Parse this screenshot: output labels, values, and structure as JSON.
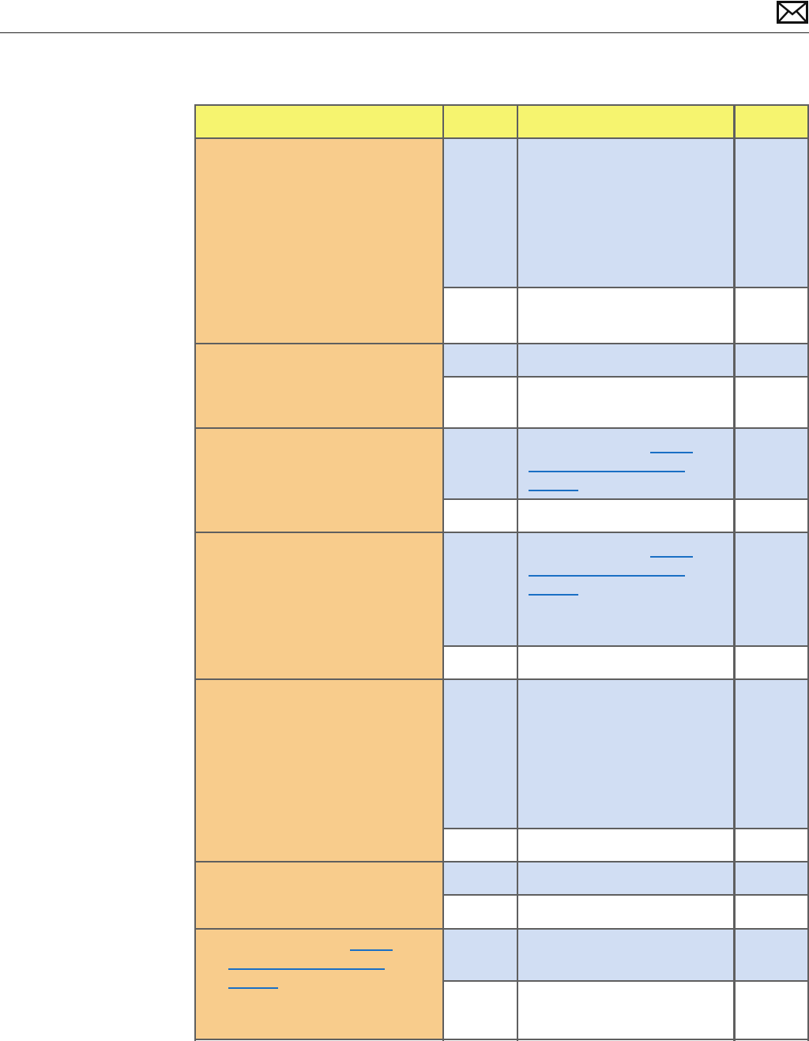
{
  "header": {
    "icon": "mail-icon"
  },
  "colors": {
    "header_row": "#f6f46f",
    "group_cell": "#f8cc8c",
    "highlight_row": "#d1def3",
    "plain_row": "#ffffff",
    "border": "#5f5f5f",
    "link": "#1a6fc4"
  },
  "table": {
    "columns": 4,
    "groups": [
      {
        "rows": 2,
        "links_in": null
      },
      {
        "rows": 2,
        "links_in": null
      },
      {
        "rows": 2,
        "links_in": "column-3"
      },
      {
        "rows": 2,
        "links_in": "column-3"
      },
      {
        "rows": 2,
        "links_in": null
      },
      {
        "rows": 2,
        "links_in": null
      },
      {
        "rows": 2,
        "links_in": "column-1"
      }
    ]
  }
}
